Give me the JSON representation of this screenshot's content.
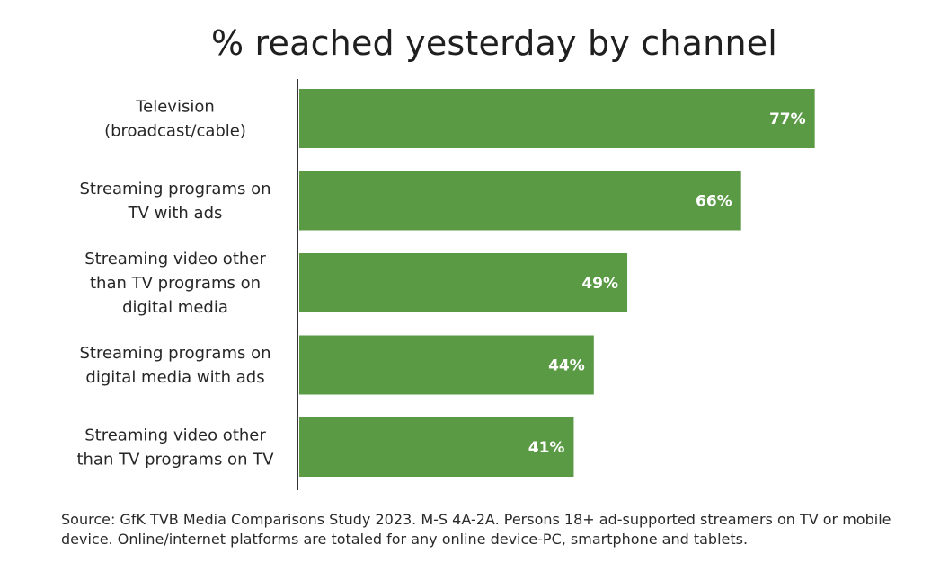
{
  "chart_data": {
    "type": "bar",
    "orientation": "horizontal",
    "title": "% reached yesterday by channel",
    "categories": [
      [
        "Television",
        "(broadcast/cable)"
      ],
      [
        "Streaming programs on",
        "TV with ads"
      ],
      [
        "Streaming video other",
        "than TV programs on",
        "digital media"
      ],
      [
        "Streaming programs on",
        "digital media with ads"
      ],
      [
        "Streaming video other",
        "than TV programs on TV"
      ]
    ],
    "values": [
      77,
      66,
      49,
      44,
      41
    ],
    "value_labels": [
      "77%",
      "66%",
      "49%",
      "44%",
      "41%"
    ],
    "xlim": [
      0,
      100
    ],
    "xlabel": "",
    "ylabel": "",
    "grid": false,
    "legend": "none",
    "colors": {
      "bar": "#5a9a45",
      "axis": "#333333",
      "value_label": "#ffffff"
    }
  },
  "source_note": "Source: GfK TVB Media Comparisons Study 2023. M-S 4A-2A. Persons 18+ ad-supported streamers on TV or mobile device. Online/internet platforms are totaled for any online device-PC, smartphone and tablets."
}
